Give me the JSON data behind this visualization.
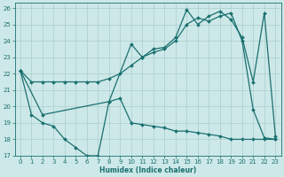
{
  "xlabel": "Humidex (Indice chaleur)",
  "bg_color": "#cde8e8",
  "grid_color": "#aacece",
  "line_color": "#1a7070",
  "xlim": [
    -0.5,
    23.5
  ],
  "ylim": [
    17,
    26.3
  ],
  "xticks": [
    0,
    1,
    2,
    3,
    4,
    5,
    6,
    7,
    8,
    9,
    10,
    11,
    12,
    13,
    14,
    15,
    16,
    17,
    18,
    19,
    20,
    21,
    22,
    23
  ],
  "yticks": [
    17,
    18,
    19,
    20,
    21,
    22,
    23,
    24,
    25,
    26
  ],
  "line1_x": [
    0,
    1,
    2,
    3,
    4,
    5,
    6,
    7,
    8,
    9,
    10,
    11,
    12,
    13,
    14,
    15,
    16,
    17,
    18,
    19,
    20,
    21,
    22,
    23
  ],
  "line1_y": [
    22.2,
    21.5,
    21.5,
    21.5,
    21.5,
    21.5,
    21.5,
    21.5,
    21.7,
    22.0,
    22.5,
    23.0,
    23.3,
    23.5,
    24.0,
    25.0,
    25.4,
    25.2,
    25.5,
    25.7,
    24.0,
    19.8,
    18.1,
    18.0
  ],
  "line2_x": [
    0,
    1,
    2,
    3,
    4,
    5,
    6,
    7,
    8,
    9,
    10,
    11,
    12,
    13,
    14,
    15,
    16,
    17,
    18,
    19,
    20,
    21,
    22,
    23
  ],
  "line2_y": [
    22.2,
    19.5,
    19.0,
    18.8,
    18.0,
    17.5,
    17.0,
    17.0,
    20.3,
    20.5,
    19.0,
    18.9,
    18.8,
    18.7,
    18.5,
    18.5,
    18.4,
    18.3,
    18.2,
    18.0,
    18.0,
    18.0,
    18.0,
    18.0
  ],
  "line3_x": [
    0,
    2,
    8,
    10,
    11,
    12,
    13,
    14,
    15,
    16,
    17,
    18,
    19,
    20,
    21,
    22,
    23
  ],
  "line3_y": [
    22.2,
    19.5,
    20.3,
    23.8,
    23.0,
    23.5,
    23.6,
    24.2,
    25.9,
    25.0,
    25.5,
    25.8,
    25.3,
    24.2,
    21.5,
    25.7,
    18.2
  ]
}
